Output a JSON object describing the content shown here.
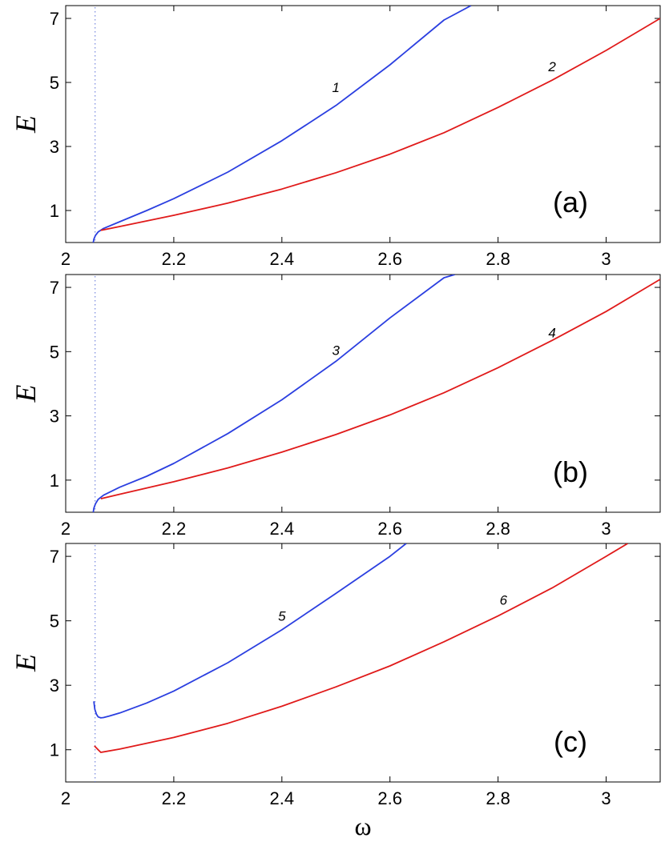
{
  "chart_data": [
    {
      "type": "line",
      "panel_label": "(a)",
      "ylabel": "E",
      "xlabel": "",
      "xlim": [
        2.0,
        3.1
      ],
      "ylim": [
        0,
        7.4
      ],
      "xticks": [
        "2",
        "2.2",
        "2.4",
        "2.6",
        "2.8",
        "3"
      ],
      "yticks": [
        "1",
        "3",
        "5",
        "7"
      ],
      "grid": false,
      "reference_line": {
        "x": 2.05,
        "style": "dotted",
        "color": "#5a6fd8"
      },
      "series": [
        {
          "label": "1",
          "color": "#2b3fe0",
          "label_at": [
            2.5,
            4.7
          ],
          "x": [
            2.051,
            2.052,
            2.055,
            2.06,
            2.07,
            2.1,
            2.15,
            2.2,
            2.3,
            2.4,
            2.5,
            2.6,
            2.7,
            2.75
          ],
          "y": [
            0.0,
            0.1,
            0.22,
            0.33,
            0.44,
            0.65,
            1.0,
            1.37,
            2.2,
            3.18,
            4.28,
            5.55,
            6.95,
            7.4
          ]
        },
        {
          "label": "2",
          "color": "#e01a1a",
          "label_at": [
            2.9,
            5.35
          ],
          "x": [
            2.065,
            2.1,
            2.2,
            2.3,
            2.4,
            2.5,
            2.6,
            2.7,
            2.8,
            2.9,
            3.0,
            3.1
          ],
          "y": [
            0.38,
            0.5,
            0.85,
            1.23,
            1.67,
            2.18,
            2.76,
            3.43,
            4.22,
            5.07,
            6.0,
            7.0
          ]
        }
      ]
    },
    {
      "type": "line",
      "panel_label": "(b)",
      "ylabel": "E",
      "xlabel": "",
      "xlim": [
        2.0,
        3.1
      ],
      "ylim": [
        0,
        7.4
      ],
      "xticks": [
        "2",
        "2.2",
        "2.4",
        "2.6",
        "2.8",
        "3"
      ],
      "yticks": [
        "1",
        "3",
        "5",
        "7"
      ],
      "grid": false,
      "reference_line": {
        "x": 2.05,
        "style": "dotted",
        "color": "#5a6fd8"
      },
      "series": [
        {
          "label": "3",
          "color": "#2b3fe0",
          "label_at": [
            2.5,
            4.9
          ],
          "x": [
            2.051,
            2.052,
            2.055,
            2.06,
            2.07,
            2.1,
            2.15,
            2.2,
            2.3,
            2.4,
            2.5,
            2.6,
            2.7,
            2.72
          ],
          "y": [
            0.0,
            0.12,
            0.26,
            0.4,
            0.53,
            0.78,
            1.12,
            1.52,
            2.45,
            3.5,
            4.7,
            6.05,
            7.3,
            7.4
          ]
        },
        {
          "label": "4",
          "color": "#e01a1a",
          "label_at": [
            2.9,
            5.45
          ],
          "x": [
            2.065,
            2.1,
            2.2,
            2.3,
            2.4,
            2.5,
            2.6,
            2.7,
            2.8,
            2.9,
            3.0,
            3.1
          ],
          "y": [
            0.42,
            0.56,
            0.95,
            1.38,
            1.87,
            2.42,
            3.03,
            3.72,
            4.5,
            5.35,
            6.25,
            7.25
          ]
        }
      ]
    },
    {
      "type": "line",
      "panel_label": "(c)",
      "ylabel": "E",
      "xlabel": "ω",
      "xlim": [
        2.0,
        3.1
      ],
      "ylim": [
        0,
        7.4
      ],
      "xticks": [
        "2",
        "2.2",
        "2.4",
        "2.6",
        "2.8",
        "3"
      ],
      "yticks": [
        "1",
        "3",
        "5",
        "7"
      ],
      "grid": false,
      "reference_line": {
        "x": 2.05,
        "style": "dotted",
        "color": "#5a6fd8"
      },
      "series": [
        {
          "label": "5",
          "color": "#2b3fe0",
          "label_at": [
            2.4,
            5.0
          ],
          "x": [
            2.052,
            2.054,
            2.057,
            2.06,
            2.065,
            2.07,
            2.08,
            2.1,
            2.15,
            2.2,
            2.3,
            2.4,
            2.5,
            2.6,
            2.63
          ],
          "y": [
            2.5,
            2.25,
            2.1,
            2.02,
            1.99,
            2.0,
            2.04,
            2.14,
            2.45,
            2.82,
            3.7,
            4.72,
            5.85,
            7.0,
            7.4
          ]
        },
        {
          "label": "6",
          "color": "#e01a1a",
          "label_at": [
            2.81,
            5.5
          ],
          "x": [
            2.053,
            2.06,
            2.065,
            2.1,
            2.2,
            2.3,
            2.4,
            2.5,
            2.6,
            2.7,
            2.8,
            2.9,
            3.0,
            3.04
          ],
          "y": [
            1.12,
            1.0,
            0.92,
            1.02,
            1.38,
            1.82,
            2.35,
            2.95,
            3.6,
            4.35,
            5.15,
            6.02,
            7.0,
            7.4
          ]
        }
      ]
    }
  ]
}
